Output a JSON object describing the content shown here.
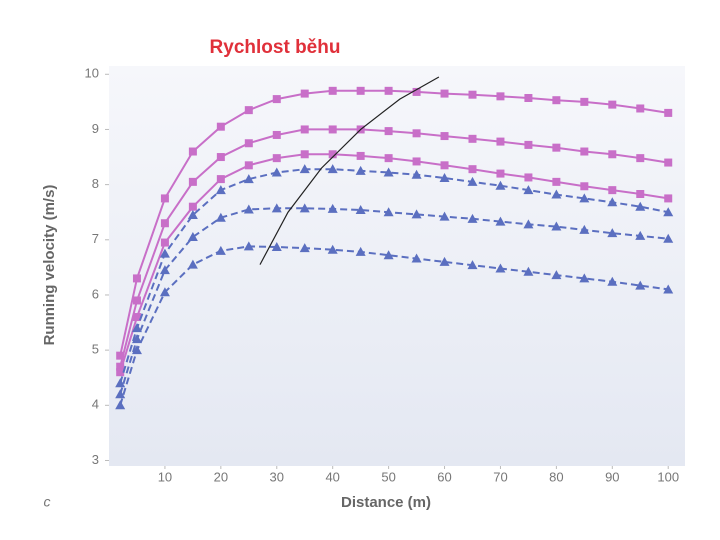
{
  "chart_data": {
    "type": "line",
    "title": "Rychlost běhu",
    "y_label": "Running velocity (m/s)",
    "x_label": "Distance (m)",
    "panel_label": "c",
    "xlim": [
      0,
      103
    ],
    "ylim": [
      2.9,
      10.15
    ],
    "xticks": [
      10,
      20,
      30,
      40,
      50,
      60,
      70,
      80,
      90,
      100
    ],
    "yticks": [
      3,
      4,
      5,
      6,
      7,
      8,
      9,
      10
    ],
    "grid": false,
    "series": [
      {
        "color": "#c86fc8",
        "marker": "square",
        "dashed": false,
        "x": [
          2,
          5,
          10,
          15,
          20,
          25,
          30,
          35,
          40,
          45,
          50,
          55,
          60,
          65,
          70,
          75,
          80,
          85,
          90,
          95,
          100
        ],
        "values": [
          4.9,
          6.3,
          7.75,
          8.6,
          9.05,
          9.35,
          9.55,
          9.65,
          9.7,
          9.7,
          9.7,
          9.68,
          9.65,
          9.63,
          9.6,
          9.57,
          9.53,
          9.5,
          9.45,
          9.38,
          9.3
        ]
      },
      {
        "color": "#c86fc8",
        "marker": "square",
        "dashed": false,
        "x": [
          2,
          5,
          10,
          15,
          20,
          25,
          30,
          35,
          40,
          45,
          50,
          55,
          60,
          65,
          70,
          75,
          80,
          85,
          90,
          95,
          100
        ],
        "values": [
          4.7,
          5.9,
          7.3,
          8.05,
          8.5,
          8.75,
          8.9,
          9.0,
          9.0,
          9.0,
          8.97,
          8.93,
          8.88,
          8.83,
          8.78,
          8.72,
          8.67,
          8.6,
          8.55,
          8.48,
          8.4
        ]
      },
      {
        "color": "#c86fc8",
        "marker": "square",
        "dashed": false,
        "x": [
          2,
          5,
          10,
          15,
          20,
          25,
          30,
          35,
          40,
          45,
          50,
          55,
          60,
          65,
          70,
          75,
          80,
          85,
          90,
          95,
          100
        ],
        "values": [
          4.6,
          5.6,
          6.95,
          7.6,
          8.1,
          8.35,
          8.48,
          8.55,
          8.55,
          8.52,
          8.48,
          8.42,
          8.35,
          8.28,
          8.2,
          8.13,
          8.05,
          7.97,
          7.9,
          7.83,
          7.75
        ]
      },
      {
        "color": "#5b6fc0",
        "marker": "triangle",
        "dashed": true,
        "x": [
          2,
          5,
          10,
          15,
          20,
          25,
          30,
          35,
          40,
          45,
          50,
          55,
          60,
          65,
          70,
          75,
          80,
          85,
          90,
          95,
          100
        ],
        "values": [
          4.4,
          5.4,
          6.75,
          7.45,
          7.9,
          8.1,
          8.22,
          8.28,
          8.28,
          8.25,
          8.22,
          8.18,
          8.12,
          8.05,
          7.98,
          7.9,
          7.82,
          7.75,
          7.68,
          7.6,
          7.5
        ]
      },
      {
        "color": "#5b6fc0",
        "marker": "triangle",
        "dashed": true,
        "x": [
          2,
          5,
          10,
          15,
          20,
          25,
          30,
          35,
          40,
          45,
          50,
          55,
          60,
          65,
          70,
          75,
          80,
          85,
          90,
          95,
          100
        ],
        "values": [
          4.2,
          5.2,
          6.45,
          7.05,
          7.4,
          7.55,
          7.57,
          7.57,
          7.56,
          7.54,
          7.5,
          7.46,
          7.42,
          7.38,
          7.33,
          7.28,
          7.24,
          7.18,
          7.12,
          7.07,
          7.02
        ]
      },
      {
        "color": "#5b6fc0",
        "marker": "triangle",
        "dashed": true,
        "x": [
          2,
          5,
          10,
          15,
          20,
          25,
          30,
          35,
          40,
          45,
          50,
          55,
          60,
          65,
          70,
          75,
          80,
          85,
          90,
          95,
          100
        ],
        "values": [
          4.0,
          5.0,
          6.05,
          6.55,
          6.8,
          6.88,
          6.87,
          6.85,
          6.82,
          6.78,
          6.72,
          6.66,
          6.6,
          6.54,
          6.48,
          6.42,
          6.36,
          6.3,
          6.24,
          6.17,
          6.1
        ]
      },
      {
        "color": "#222222",
        "marker": "none",
        "dashed": false,
        "x": [
          27,
          32,
          38,
          45,
          52,
          59
        ],
        "values": [
          6.55,
          7.5,
          8.3,
          9.0,
          9.55,
          9.95
        ]
      }
    ]
  }
}
